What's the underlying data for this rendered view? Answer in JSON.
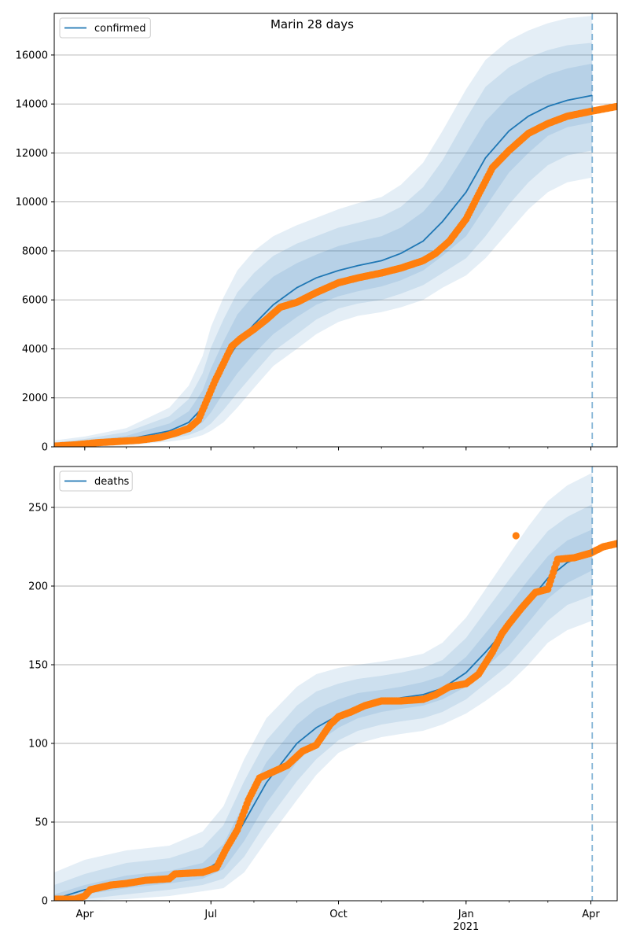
{
  "chart_data": [
    {
      "type": "line",
      "title": "Marin 28 days",
      "legend": {
        "label": "confirmed",
        "placement": "top-left"
      },
      "x_range": [
        "2020-03-10",
        "2021-04-20"
      ],
      "x_ticks": [
        {
          "date": "2020-04-01",
          "label": "Apr",
          "sublabel": ""
        },
        {
          "date": "2020-07-01",
          "label": "Jul",
          "sublabel": ""
        },
        {
          "date": "2020-10-01",
          "label": "Oct",
          "sublabel": ""
        },
        {
          "date": "2021-01-01",
          "label": "Jan",
          "sublabel": "2021"
        },
        {
          "date": "2021-04-01",
          "label": "Apr",
          "sublabel": ""
        }
      ],
      "ylim": [
        0,
        17700
      ],
      "y_ticks": [
        0,
        2000,
        4000,
        6000,
        8000,
        10000,
        12000,
        14000,
        16000
      ],
      "grid": "y",
      "forecast_start": "2021-04-02",
      "colors": {
        "model": "#1f77b4",
        "observed": "#ff7f0e",
        "band": "#1f77b4"
      },
      "model": {
        "name": "confirmed",
        "x": [
          "2020-03-10",
          "2020-04-01",
          "2020-05-01",
          "2020-06-01",
          "2020-06-15",
          "2020-06-25",
          "2020-07-01",
          "2020-07-10",
          "2020-07-20",
          "2020-08-01",
          "2020-08-15",
          "2020-09-01",
          "2020-09-15",
          "2020-10-01",
          "2020-10-15",
          "2020-11-01",
          "2020-11-15",
          "2020-12-01",
          "2020-12-15",
          "2021-01-01",
          "2021-01-15",
          "2021-02-01",
          "2021-02-15",
          "2021-03-01",
          "2021-03-15",
          "2021-04-02"
        ],
        "y": [
          50,
          150,
          300,
          650,
          1000,
          1600,
          2300,
          3300,
          4200,
          5000,
          5800,
          6500,
          6900,
          7200,
          7400,
          7600,
          7900,
          8400,
          9200,
          10400,
          11800,
          12900,
          13500,
          13900,
          14150,
          14350
        ],
        "bands": [
          {
            "lower": [
              0,
              80,
              180,
              450,
              700,
              1000,
              1400,
              2200,
              3000,
              3800,
              4600,
              5300,
              5800,
              6150,
              6350,
              6550,
              6800,
              7200,
              7800,
              8600,
              9800,
              11200,
              12000,
              12700,
              13050,
              13250
            ],
            "upper": [
              110,
              230,
              450,
              950,
              1450,
              2300,
              3200,
              4300,
              5400,
              6200,
              6950,
              7500,
              7850,
              8200,
              8400,
              8600,
              8950,
              9600,
              10500,
              12000,
              13300,
              14300,
              14800,
              15200,
              15450,
              15650
            ]
          },
          {
            "lower": [
              0,
              40,
              120,
              330,
              480,
              700,
              950,
              1500,
              2200,
              3000,
              3900,
              4600,
              5200,
              5650,
              5850,
              6000,
              6250,
              6600,
              7100,
              7700,
              8600,
              9900,
              10800,
              11500,
              11900,
              12100
            ],
            "upper": [
              180,
              320,
              600,
              1250,
              1950,
              3000,
              4050,
              5200,
              6300,
              7100,
              7800,
              8300,
              8600,
              8950,
              9150,
              9400,
              9800,
              10600,
              11700,
              13400,
              14700,
              15500,
              15900,
              16200,
              16400,
              16500
            ],
            "_": ""
          },
          {
            "lower": [
              0,
              10,
              60,
              220,
              320,
              480,
              650,
              1000,
              1600,
              2400,
              3300,
              4000,
              4600,
              5100,
              5350,
              5500,
              5700,
              6000,
              6500,
              7000,
              7700,
              8800,
              9700,
              10400,
              10800,
              11000
            ],
            "upper": [
              260,
              420,
              760,
              1600,
              2500,
              3700,
              4900,
              6100,
              7200,
              8000,
              8600,
              9050,
              9350,
              9700,
              9950,
              10200,
              10700,
              11600,
              12900,
              14600,
              15800,
              16600,
              17000,
              17300,
              17500,
              17600
            ]
          }
        ]
      },
      "observed": {
        "x": [
          "2020-03-10",
          "2020-03-25",
          "2020-04-10",
          "2020-04-25",
          "2020-05-10",
          "2020-05-25",
          "2020-06-05",
          "2020-06-15",
          "2020-06-22",
          "2020-06-28",
          "2020-07-04",
          "2020-07-10",
          "2020-07-16",
          "2020-07-22",
          "2020-08-01",
          "2020-08-10",
          "2020-08-20",
          "2020-09-01",
          "2020-09-15",
          "2020-10-01",
          "2020-10-15",
          "2020-11-01",
          "2020-11-15",
          "2020-12-01",
          "2020-12-10",
          "2020-12-20",
          "2021-01-01",
          "2021-01-10",
          "2021-01-20",
          "2021-02-01",
          "2021-02-15",
          "2021-03-01",
          "2021-03-15",
          "2021-04-01",
          "2021-04-20"
        ],
        "y": [
          30,
          80,
          170,
          220,
          270,
          380,
          550,
          750,
          1100,
          1900,
          2700,
          3400,
          4100,
          4400,
          4800,
          5200,
          5700,
          5900,
          6300,
          6700,
          6900,
          7100,
          7300,
          7600,
          7900,
          8400,
          9300,
          10300,
          11400,
          12100,
          12800,
          13200,
          13500,
          13700,
          13900
        ]
      }
    },
    {
      "type": "line",
      "title": "",
      "legend": {
        "label": "deaths",
        "placement": "top-left"
      },
      "x_range": [
        "2020-03-10",
        "2021-04-20"
      ],
      "x_ticks": [
        {
          "date": "2020-04-01",
          "label": "Apr",
          "sublabel": ""
        },
        {
          "date": "2020-07-01",
          "label": "Jul",
          "sublabel": ""
        },
        {
          "date": "2020-10-01",
          "label": "Oct",
          "sublabel": ""
        },
        {
          "date": "2021-01-01",
          "label": "Jan",
          "sublabel": "2021"
        },
        {
          "date": "2021-04-01",
          "label": "Apr",
          "sublabel": ""
        }
      ],
      "ylim": [
        0,
        276
      ],
      "y_ticks": [
        0,
        50,
        100,
        150,
        200,
        250
      ],
      "grid": "y",
      "forecast_start": "2021-04-02",
      "colors": {
        "model": "#1f77b4",
        "observed": "#ff7f0e",
        "band": "#1f77b4"
      },
      "model": {
        "name": "deaths",
        "x": [
          "2020-03-10",
          "2020-04-01",
          "2020-05-01",
          "2020-06-01",
          "2020-06-25",
          "2020-07-10",
          "2020-07-25",
          "2020-08-10",
          "2020-09-01",
          "2020-09-15",
          "2020-10-01",
          "2020-10-15",
          "2020-11-01",
          "2020-11-15",
          "2020-12-01",
          "2020-12-15",
          "2021-01-01",
          "2021-01-15",
          "2021-02-01",
          "2021-02-15",
          "2021-03-01",
          "2021-03-15",
          "2021-04-02"
        ],
        "y": [
          1,
          7,
          12,
          15,
          18,
          27,
          50,
          75,
          100,
          110,
          118,
          123,
          127,
          129,
          131,
          135,
          145,
          158,
          175,
          190,
          205,
          215,
          222
        ],
        "bands": [
          {
            "lower": [
              0,
              4,
              8,
              11,
              14,
              20,
              38,
              62,
              88,
              100,
              110,
              116,
              120,
              122,
              124,
              128,
              136,
              148,
              162,
              177,
              192,
              202,
              210
            ],
            "upper": [
              4,
              10,
              16,
              19,
              24,
              36,
              62,
              88,
              112,
              122,
              128,
              132,
              134,
              136,
              139,
              143,
              155,
              170,
              188,
              204,
              219,
              229,
              236
            ]
          },
          {
            "lower": [
              0,
              1,
              4,
              7,
              10,
              14,
              28,
              50,
              76,
              90,
              102,
              108,
              112,
              114,
              116,
              120,
              128,
              138,
              150,
              164,
              178,
              188,
              194
            ],
            "upper": [
              10,
              17,
              24,
              27,
              34,
              48,
              76,
              102,
              124,
              133,
              138,
              141,
              143,
              145,
              148,
              153,
              167,
              184,
              204,
              220,
              235,
              244,
              252
            ]
          },
          {
            "lower": [
              0,
              0,
              1,
              3,
              6,
              8,
              18,
              38,
              64,
              80,
              94,
              100,
              104,
              106,
              108,
              112,
              119,
              127,
              138,
              150,
              164,
              172,
              178
            ],
            "upper": [
              18,
              26,
              32,
              35,
              44,
              60,
              90,
              116,
              136,
              144,
              148,
              150,
              152,
              154,
              157,
              164,
              180,
              198,
              220,
              238,
              254,
              264,
              272
            ]
          }
        ]
      },
      "observed": {
        "x": [
          "2020-03-10",
          "2020-03-25",
          "2020-04-01",
          "2020-04-05",
          "2020-04-20",
          "2020-05-01",
          "2020-05-15",
          "2020-06-01",
          "2020-06-05",
          "2020-06-25",
          "2020-07-05",
          "2020-07-12",
          "2020-07-20",
          "2020-07-28",
          "2020-08-05",
          "2020-08-15",
          "2020-08-25",
          "2020-09-05",
          "2020-09-15",
          "2020-09-25",
          "2020-10-01",
          "2020-10-10",
          "2020-10-20",
          "2020-11-01",
          "2020-11-15",
          "2020-12-01",
          "2020-12-10",
          "2020-12-20",
          "2021-01-01",
          "2021-01-10",
          "2021-01-20",
          "2021-01-27",
          "2021-02-01",
          "2021-02-10",
          "2021-02-20",
          "2021-03-01",
          "2021-03-08",
          "2021-03-20",
          "2021-04-01",
          "2021-04-10",
          "2021-04-20"
        ],
        "y": [
          1,
          1,
          3,
          7,
          10,
          11,
          13,
          14,
          17,
          18,
          21,
          33,
          45,
          64,
          78,
          82,
          86,
          95,
          99,
          112,
          117,
          120,
          124,
          127,
          127,
          128,
          131,
          136,
          138,
          144,
          158,
          170,
          176,
          186,
          196,
          198,
          217,
          218,
          221,
          225,
          227
        ]
      },
      "outlier": {
        "x": "2021-02-06",
        "y": 232
      }
    }
  ]
}
